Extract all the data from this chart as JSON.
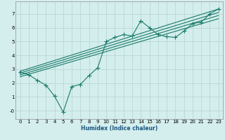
{
  "xlabel": "Humidex (Indice chaleur)",
  "ylabel": "",
  "bg_color": "#d4eeed",
  "grid_color": "#b8d8d4",
  "line_color": "#1a7a6a",
  "xlim": [
    -0.5,
    23.5
  ],
  "ylim": [
    -0.6,
    7.9
  ],
  "xticks": [
    0,
    1,
    2,
    3,
    4,
    5,
    6,
    7,
    8,
    9,
    10,
    11,
    12,
    13,
    14,
    15,
    16,
    17,
    18,
    19,
    20,
    21,
    22,
    23
  ],
  "yticks": [
    0,
    1,
    2,
    3,
    4,
    5,
    6,
    7
  ],
  "ytick_labels": [
    "-0",
    "1",
    "2",
    "3",
    "4",
    "5",
    "6",
    "7"
  ],
  "scatter_x": [
    0,
    1,
    2,
    3,
    4,
    5,
    6,
    7,
    8,
    9,
    10,
    11,
    12,
    13,
    14,
    15,
    16,
    17,
    18,
    19,
    20,
    21,
    22,
    23
  ],
  "scatter_y": [
    2.8,
    2.6,
    2.2,
    1.85,
    1.05,
    -0.1,
    1.75,
    1.9,
    2.55,
    3.1,
    5.0,
    5.3,
    5.5,
    5.4,
    6.5,
    6.0,
    5.5,
    5.35,
    5.3,
    5.75,
    6.3,
    6.4,
    7.0,
    7.35
  ],
  "reg_lines": [
    {
      "x0": 0,
      "y0": 2.85,
      "x1": 23,
      "y1": 7.35
    },
    {
      "x0": 0,
      "y0": 2.72,
      "x1": 23,
      "y1": 7.1
    },
    {
      "x0": 0,
      "y0": 2.58,
      "x1": 23,
      "y1": 6.88
    },
    {
      "x0": 0,
      "y0": 2.45,
      "x1": 23,
      "y1": 6.65
    }
  ],
  "xlabel_color": "#1a5580",
  "xlabel_fontsize": 5.5,
  "tick_fontsize": 5.0,
  "line_width": 0.8,
  "marker_size": 2.2
}
